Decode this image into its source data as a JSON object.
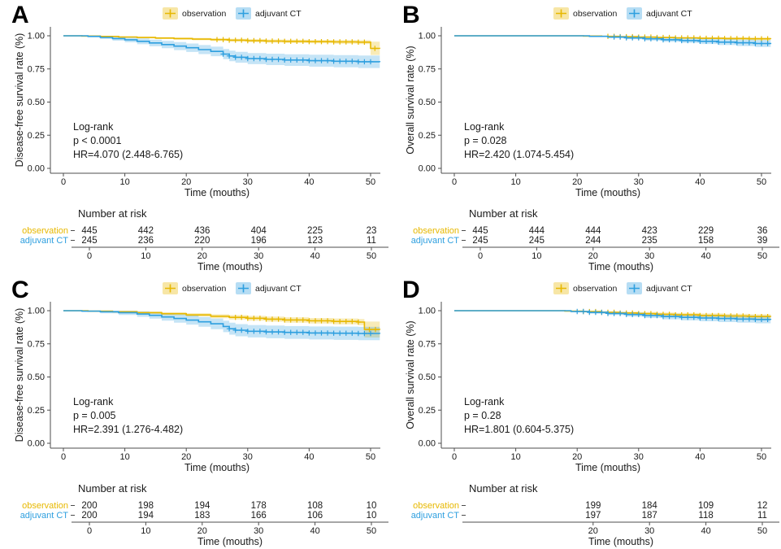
{
  "figure": {
    "background": "#ffffff",
    "axis_color": "#4d4d4d",
    "text_color": "#1a1a1a",
    "colors": {
      "observation": "#E7B800",
      "adjuvant_ct": "#2E9FDF"
    }
  },
  "chart_data": [
    {
      "panel": "A",
      "type": "line",
      "subtype": "kaplan-meier-step",
      "ylabel": "Disease-free survival rate (%)",
      "xlabel": "Time (mouths)",
      "yticks": [
        "1.00",
        "0.75",
        "0.50",
        "0.25",
        "0.00"
      ],
      "ytick_values": [
        1.0,
        0.75,
        0.5,
        0.25,
        0.0
      ],
      "xticks": [
        0,
        10,
        20,
        30,
        40,
        50
      ],
      "xlim": [
        0,
        52
      ],
      "ylim": [
        0,
        1.0
      ],
      "annotation": [
        "Log-rank",
        "p < 0.0001",
        "HR=4.070 (2.448-6.765)"
      ],
      "legend": [
        {
          "name": "observation",
          "color": "#E7B800"
        },
        {
          "name": "adjuvant CT",
          "color": "#2E9FDF"
        }
      ],
      "series": [
        {
          "name": "observation",
          "color": "#E7B800",
          "x": [
            0,
            3,
            6,
            9,
            12,
            15,
            18,
            21,
            24,
            27,
            30,
            33,
            36,
            40,
            44,
            48,
            50,
            51.5
          ],
          "y": [
            1.0,
            0.998,
            0.995,
            0.991,
            0.987,
            0.983,
            0.979,
            0.975,
            0.971,
            0.967,
            0.963,
            0.96,
            0.958,
            0.956,
            0.954,
            0.952,
            0.905,
            0.903
          ],
          "ci": [
            0.002,
            0.003,
            0.004,
            0.005,
            0.006,
            0.007,
            0.008,
            0.009,
            0.01,
            0.011,
            0.012,
            0.012,
            0.013,
            0.013,
            0.014,
            0.015,
            0.05,
            0.05
          ],
          "censor_x": [
            25,
            26,
            27,
            28,
            29,
            30,
            31,
            32,
            33,
            34,
            35,
            36,
            37,
            38,
            39,
            40,
            41,
            42,
            43,
            44,
            45,
            46,
            47,
            48,
            49,
            50.7
          ]
        },
        {
          "name": "adjuvant CT",
          "color": "#2E9FDF",
          "x": [
            0,
            4,
            6,
            8,
            10,
            12,
            14,
            16,
            18,
            20,
            22,
            24,
            26,
            27,
            28,
            30,
            33,
            36,
            40,
            44,
            48,
            51.5
          ],
          "y": [
            1.0,
            0.996,
            0.988,
            0.979,
            0.97,
            0.958,
            0.946,
            0.934,
            0.922,
            0.91,
            0.896,
            0.882,
            0.862,
            0.848,
            0.838,
            0.828,
            0.822,
            0.817,
            0.812,
            0.808,
            0.804,
            0.802
          ],
          "ci": [
            0.004,
            0.008,
            0.012,
            0.016,
            0.019,
            0.022,
            0.025,
            0.028,
            0.03,
            0.032,
            0.034,
            0.036,
            0.038,
            0.04,
            0.041,
            0.042,
            0.043,
            0.044,
            0.045,
            0.046,
            0.047,
            0.047
          ],
          "censor_x": [
            26,
            27,
            28,
            29,
            30,
            31,
            32,
            33,
            34,
            35,
            36,
            37,
            38,
            39,
            40,
            41,
            42,
            43,
            44,
            45,
            46,
            47,
            48,
            49,
            50
          ]
        }
      ],
      "risk_table": {
        "title": "Number at risk",
        "xlabel": "Time (mouths)",
        "xticks": [
          0,
          10,
          20,
          30,
          40,
          50
        ],
        "rows": [
          {
            "label": "observation",
            "color": "#E7B800",
            "values": [
              445,
              442,
              436,
              404,
              225,
              23
            ]
          },
          {
            "label": "adjuvant CT",
            "color": "#2E9FDF",
            "values": [
              245,
              236,
              220,
              196,
              123,
              11
            ]
          }
        ]
      }
    },
    {
      "panel": "B",
      "type": "line",
      "subtype": "kaplan-meier-step",
      "ylabel": "Overall survival rate (%)",
      "xlabel": "Time (mouths)",
      "yticks": [
        "1.00",
        "0.75",
        "0.50",
        "0.25",
        "0.00"
      ],
      "ytick_values": [
        1.0,
        0.75,
        0.5,
        0.25,
        0.0
      ],
      "xticks": [
        0,
        10,
        20,
        30,
        40,
        50
      ],
      "xlim": [
        0,
        52
      ],
      "ylim": [
        0,
        1.0
      ],
      "annotation": [
        "Log-rank",
        "p = 0.028",
        "HR=2.420 (1.074-5.454)"
      ],
      "legend": [
        {
          "name": "observation",
          "color": "#E7B800"
        },
        {
          "name": "adjuvant CT",
          "color": "#2E9FDF"
        }
      ],
      "series": [
        {
          "name": "observation",
          "color": "#E7B800",
          "x": [
            0,
            18,
            21,
            24,
            27,
            30,
            33,
            36,
            40,
            44,
            48,
            51.5
          ],
          "y": [
            1.0,
            1.0,
            0.998,
            0.996,
            0.993,
            0.99,
            0.987,
            0.984,
            0.981,
            0.979,
            0.977,
            0.976
          ],
          "ci": [
            0.001,
            0.001,
            0.002,
            0.003,
            0.004,
            0.005,
            0.006,
            0.007,
            0.008,
            0.009,
            0.01,
            0.01
          ],
          "censor_x": [
            25,
            26,
            27,
            28,
            29,
            30,
            31,
            32,
            33,
            34,
            35,
            36,
            37,
            38,
            39,
            40,
            41,
            42,
            43,
            44,
            45,
            46,
            47,
            48,
            49,
            50,
            51
          ]
        },
        {
          "name": "adjuvant CT",
          "color": "#2E9FDF",
          "x": [
            0,
            18,
            22,
            25,
            28,
            31,
            34,
            37,
            40,
            43,
            46,
            49,
            51.5
          ],
          "y": [
            1.0,
            1.0,
            0.996,
            0.99,
            0.984,
            0.977,
            0.97,
            0.964,
            0.958,
            0.952,
            0.947,
            0.942,
            0.938
          ],
          "ci": [
            0.002,
            0.002,
            0.004,
            0.007,
            0.01,
            0.013,
            0.016,
            0.018,
            0.02,
            0.022,
            0.024,
            0.026,
            0.026
          ],
          "censor_x": [
            26,
            27,
            28,
            29,
            30,
            31,
            32,
            33,
            34,
            35,
            36,
            37,
            38,
            39,
            40,
            41,
            42,
            43,
            44,
            45,
            46,
            47,
            48,
            49,
            50,
            51
          ]
        }
      ],
      "risk_table": {
        "title": "Number at risk",
        "xlabel": "Time (mouths)",
        "xticks": [
          0,
          10,
          20,
          30,
          40,
          50
        ],
        "rows": [
          {
            "label": "observation",
            "color": "#E7B800",
            "values": [
              445,
              444,
              444,
              423,
              229,
              36
            ]
          },
          {
            "label": "adjuvant CT",
            "color": "#2E9FDF",
            "values": [
              245,
              245,
              244,
              235,
              158,
              39
            ]
          }
        ]
      }
    },
    {
      "panel": "C",
      "type": "line",
      "subtype": "kaplan-meier-step",
      "ylabel": "Disease-free survival rate (%)",
      "xlabel": "Time (mouths)",
      "yticks": [
        "1.00",
        "0.75",
        "0.50",
        "0.25",
        "0.00"
      ],
      "ytick_values": [
        1.0,
        0.75,
        0.5,
        0.25,
        0.0
      ],
      "xticks": [
        0,
        10,
        20,
        30,
        40,
        50
      ],
      "xlim": [
        0,
        52
      ],
      "ylim": [
        0,
        1.0
      ],
      "annotation": [
        "Log-rank",
        "p = 0.005",
        "HR=2.391 (1.276-4.482)"
      ],
      "legend": [
        {
          "name": "observation",
          "color": "#E7B800"
        },
        {
          "name": "adjuvant CT",
          "color": "#2E9FDF"
        }
      ],
      "series": [
        {
          "name": "observation",
          "color": "#E7B800",
          "x": [
            0,
            4,
            8,
            12,
            16,
            20,
            24,
            27,
            30,
            33,
            36,
            40,
            44,
            48,
            49,
            51.5
          ],
          "y": [
            1.0,
            0.997,
            0.992,
            0.985,
            0.977,
            0.968,
            0.958,
            0.95,
            0.943,
            0.936,
            0.93,
            0.924,
            0.919,
            0.914,
            0.858,
            0.856
          ],
          "ci": [
            0.003,
            0.005,
            0.007,
            0.009,
            0.011,
            0.013,
            0.015,
            0.017,
            0.018,
            0.019,
            0.02,
            0.021,
            0.022,
            0.023,
            0.06,
            0.06
          ],
          "censor_x": [
            28,
            29,
            30,
            31,
            32,
            33,
            34,
            35,
            36,
            37,
            38,
            39,
            40,
            41,
            42,
            43,
            44,
            45,
            46,
            47,
            48,
            49.8,
            50.8
          ]
        },
        {
          "name": "adjuvant CT",
          "color": "#2E9FDF",
          "x": [
            0,
            3,
            6,
            9,
            12,
            14,
            16,
            18,
            20,
            22,
            24,
            26,
            27,
            28,
            30,
            33,
            36,
            40,
            44,
            48,
            51.5
          ],
          "y": [
            1.0,
            0.997,
            0.992,
            0.985,
            0.975,
            0.965,
            0.953,
            0.941,
            0.929,
            0.916,
            0.901,
            0.881,
            0.864,
            0.853,
            0.845,
            0.84,
            0.836,
            0.832,
            0.83,
            0.828,
            0.826
          ],
          "ci": [
            0.004,
            0.008,
            0.012,
            0.017,
            0.021,
            0.025,
            0.028,
            0.031,
            0.034,
            0.037,
            0.04,
            0.043,
            0.045,
            0.046,
            0.047,
            0.048,
            0.048,
            0.049,
            0.05,
            0.05,
            0.05
          ],
          "censor_x": [
            27,
            28,
            29,
            30,
            31,
            32,
            33,
            34,
            35,
            36,
            37,
            38,
            39,
            40,
            41,
            42,
            43,
            44,
            45,
            46,
            47,
            48,
            49,
            50
          ]
        }
      ],
      "risk_table": {
        "title": "Number at risk",
        "xlabel": "Time (mouths)",
        "xticks": [
          0,
          10,
          20,
          30,
          40,
          50
        ],
        "rows": [
          {
            "label": "observation",
            "color": "#E7B800",
            "values": [
              200,
              198,
              194,
              178,
              108,
              10
            ]
          },
          {
            "label": "adjuvant CT",
            "color": "#2E9FDF",
            "values": [
              200,
              194,
              183,
              166,
              106,
              10
            ]
          }
        ]
      }
    },
    {
      "panel": "D",
      "type": "line",
      "subtype": "kaplan-meier-step",
      "ylabel": "Overall survival rate (%)",
      "xlabel": "Time (mouths)",
      "yticks": [
        "1.00",
        "0.75",
        "0.50",
        "0.25",
        "0.00"
      ],
      "ytick_values": [
        1.0,
        0.75,
        0.5,
        0.25,
        0.0
      ],
      "xticks": [
        0,
        10,
        20,
        30,
        40,
        50
      ],
      "xlim": [
        0,
        52
      ],
      "ylim": [
        0,
        1.0
      ],
      "annotation": [
        "Log-rank",
        "p = 0.28",
        "HR=1.801 (0.604-5.375)"
      ],
      "legend": [
        {
          "name": "observation",
          "color": "#E7B800"
        },
        {
          "name": "adjuvant CT",
          "color": "#2E9FDF"
        }
      ],
      "series": [
        {
          "name": "observation",
          "color": "#E7B800",
          "x": [
            0,
            15,
            18,
            21,
            24,
            27,
            30,
            33,
            36,
            40,
            44,
            48,
            51.5
          ],
          "y": [
            1.0,
            1.0,
            0.997,
            0.993,
            0.988,
            0.983,
            0.978,
            0.973,
            0.969,
            0.964,
            0.96,
            0.956,
            0.954
          ],
          "ci": [
            0.002,
            0.002,
            0.004,
            0.006,
            0.008,
            0.01,
            0.012,
            0.013,
            0.014,
            0.015,
            0.016,
            0.017,
            0.017
          ],
          "censor_x": [
            21,
            22,
            23,
            24,
            25,
            26,
            27,
            28,
            29,
            30,
            31,
            32,
            33,
            34,
            35,
            36,
            37,
            38,
            39,
            40,
            41,
            42,
            43,
            44,
            45,
            46,
            47,
            48,
            49,
            50,
            51
          ]
        },
        {
          "name": "adjuvant CT",
          "color": "#2E9FDF",
          "x": [
            0,
            15,
            19,
            22,
            25,
            28,
            31,
            34,
            37,
            40,
            43,
            46,
            49,
            51.5
          ],
          "y": [
            1.0,
            1.0,
            0.994,
            0.987,
            0.979,
            0.971,
            0.963,
            0.956,
            0.95,
            0.945,
            0.941,
            0.937,
            0.934,
            0.932
          ],
          "ci": [
            0.003,
            0.003,
            0.006,
            0.009,
            0.012,
            0.015,
            0.018,
            0.021,
            0.023,
            0.025,
            0.027,
            0.028,
            0.029,
            0.029
          ],
          "censor_x": [
            20,
            21,
            22,
            23,
            24,
            25,
            26,
            27,
            28,
            29,
            30,
            31,
            32,
            33,
            34,
            35,
            36,
            37,
            38,
            39,
            40,
            41,
            42,
            43,
            44,
            45,
            46,
            47,
            48,
            49,
            50,
            51
          ]
        }
      ],
      "risk_table": {
        "title": "Number at risk",
        "xlabel": "Time (mouths)",
        "xticks": [
          20,
          30,
          40,
          50
        ],
        "rows": [
          {
            "label": "observation",
            "color": "#E7B800",
            "values": [
              199,
              184,
              109,
              12
            ]
          },
          {
            "label": "adjuvant CT",
            "color": "#2E9FDF",
            "values": [
              197,
              187,
              118,
              11
            ]
          }
        ]
      }
    }
  ]
}
